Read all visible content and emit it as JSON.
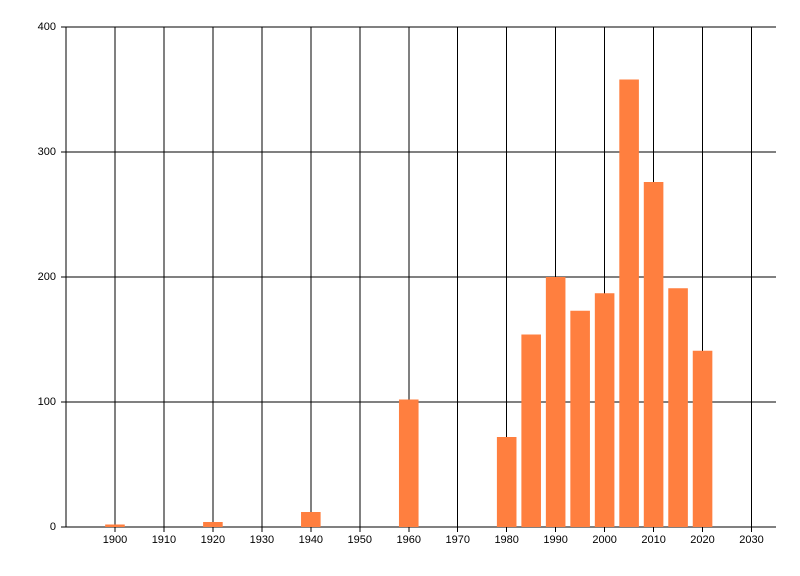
{
  "chart_data": {
    "type": "bar",
    "x": [
      1900,
      1920,
      1940,
      1960,
      1980,
      1985,
      1990,
      1995,
      2000,
      2005,
      2010,
      2015,
      2020
    ],
    "values": [
      2,
      4,
      12,
      102,
      72,
      154,
      200,
      173,
      187,
      358,
      276,
      191,
      141
    ],
    "color": "#ff7f3f",
    "xlim": [
      1890,
      2035
    ],
    "xticks": [
      1900,
      1910,
      1920,
      1930,
      1940,
      1950,
      1960,
      1970,
      1980,
      1990,
      2000,
      2010,
      2020,
      2030
    ],
    "ylim": [
      0,
      400
    ],
    "yticks": [
      0,
      100,
      200,
      300,
      400
    ],
    "grid": true
  }
}
